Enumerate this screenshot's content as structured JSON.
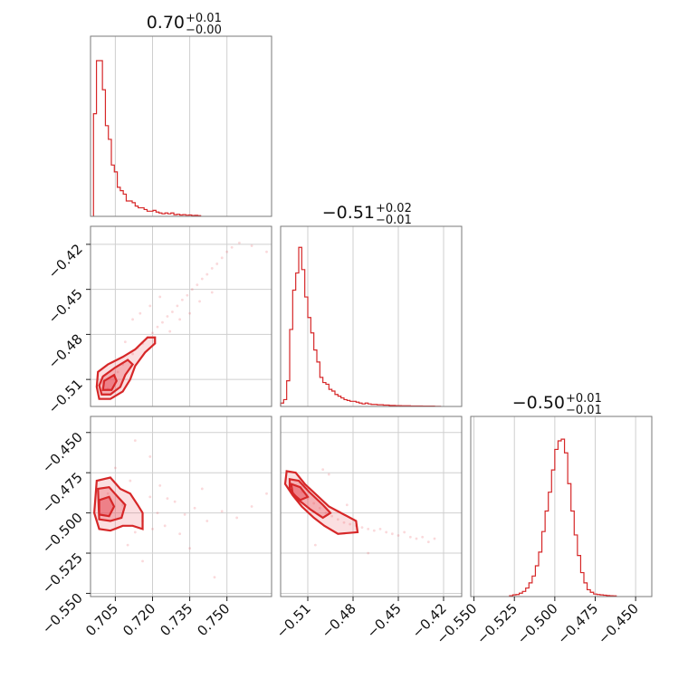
{
  "chart_data": [
    {
      "type": "histogram",
      "title": {
        "value": "0.70",
        "plus": "+0.01",
        "minus": "−0.00"
      },
      "param_index": 0,
      "xlim": [
        0.695,
        0.768
      ],
      "xticks": [
        0.705,
        0.72,
        0.735,
        0.75
      ],
      "xticklabels": [
        "0.705",
        "0.720",
        "0.735",
        "0.750"
      ],
      "bins": [
        0.6962,
        0.6974,
        0.6986,
        0.6998,
        0.701,
        0.7022,
        0.7034,
        0.7046,
        0.7058,
        0.707,
        0.7082,
        0.7094,
        0.7106,
        0.7118,
        0.713,
        0.7142,
        0.7154,
        0.7166,
        0.7178,
        0.719,
        0.7202,
        0.7214,
        0.7226,
        0.7238,
        0.725,
        0.7262,
        0.7274,
        0.7286,
        0.7298,
        0.731,
        0.7322,
        0.7334,
        0.7346,
        0.7358,
        0.737,
        0.7382,
        0.7394
      ],
      "counts": [
        0.6,
        0.91,
        0.91,
        0.74,
        0.53,
        0.45,
        0.3,
        0.26,
        0.17,
        0.15,
        0.13,
        0.09,
        0.09,
        0.08,
        0.06,
        0.05,
        0.05,
        0.04,
        0.03,
        0.03,
        0.035,
        0.025,
        0.02,
        0.015,
        0.02,
        0.015,
        0.02,
        0.01,
        0.012,
        0.008,
        0.01,
        0.007,
        0.008,
        0.005,
        0.006,
        0.004
      ]
    },
    {
      "type": "histogram",
      "title": {
        "value": "−0.51",
        "plus": "+0.02",
        "minus": "−0.01"
      },
      "param_index": 1,
      "xlim": [
        -0.528,
        -0.408
      ],
      "xticks": [
        -0.51,
        -0.48,
        -0.45,
        -0.42
      ],
      "xticklabels": [
        "−0.51",
        "−0.48",
        "−0.45",
        "−0.42"
      ],
      "bins": [
        -0.528,
        -0.526,
        -0.524,
        -0.522,
        -0.52,
        -0.518,
        -0.516,
        -0.514,
        -0.512,
        -0.51,
        -0.508,
        -0.506,
        -0.504,
        -0.502,
        -0.5,
        -0.498,
        -0.496,
        -0.494,
        -0.492,
        -0.49,
        -0.488,
        -0.486,
        -0.484,
        -0.482,
        -0.48,
        -0.478,
        -0.476,
        -0.474,
        -0.472,
        -0.47,
        -0.468,
        -0.466,
        -0.464,
        -0.462,
        -0.46,
        -0.458,
        -0.456,
        -0.454,
        -0.452,
        -0.45,
        -0.448,
        -0.446,
        -0.444,
        -0.442,
        -0.44,
        -0.438,
        -0.436,
        -0.434,
        -0.432,
        -0.43,
        -0.428,
        -0.426,
        -0.424,
        -0.422
      ],
      "counts": [
        0.02,
        0.04,
        0.15,
        0.45,
        0.68,
        0.78,
        0.93,
        0.8,
        0.64,
        0.52,
        0.43,
        0.33,
        0.26,
        0.17,
        0.14,
        0.13,
        0.1,
        0.09,
        0.07,
        0.06,
        0.05,
        0.04,
        0.035,
        0.03,
        0.03,
        0.025,
        0.02,
        0.015,
        0.02,
        0.015,
        0.012,
        0.012,
        0.01,
        0.01,
        0.008,
        0.008,
        0.006,
        0.006,
        0.005,
        0.005,
        0.004,
        0.004,
        0.004,
        0.003,
        0.003,
        0.003,
        0.003,
        0.002,
        0.002,
        0.002,
        0.002,
        0.001,
        0.001
      ]
    },
    {
      "type": "histogram",
      "title": {
        "value": "−0.50",
        "plus": "+0.01",
        "minus": "−0.01"
      },
      "param_index": 2,
      "xlim": [
        -0.552,
        -0.44
      ],
      "xticks": [
        -0.55,
        -0.525,
        -0.5,
        -0.475,
        -0.45
      ],
      "xticklabels": [
        "−0.550",
        "−0.525",
        "−0.500",
        "−0.475",
        "−0.450"
      ],
      "bins": [
        -0.528,
        -0.526,
        -0.524,
        -0.522,
        -0.52,
        -0.518,
        -0.516,
        -0.514,
        -0.512,
        -0.51,
        -0.508,
        -0.506,
        -0.504,
        -0.502,
        -0.5,
        -0.498,
        -0.496,
        -0.494,
        -0.492,
        -0.49,
        -0.488,
        -0.486,
        -0.484,
        -0.482,
        -0.48,
        -0.478,
        -0.476,
        -0.474,
        -0.472,
        -0.47,
        -0.468,
        -0.466,
        -0.464,
        -0.462
      ],
      "counts": [
        0.005,
        0.01,
        0.012,
        0.02,
        0.03,
        0.05,
        0.08,
        0.12,
        0.18,
        0.26,
        0.38,
        0.5,
        0.61,
        0.74,
        0.86,
        0.91,
        0.92,
        0.84,
        0.66,
        0.5,
        0.36,
        0.24,
        0.14,
        0.08,
        0.04,
        0.025,
        0.015,
        0.012,
        0.01,
        0.008,
        0.006,
        0.005,
        0.004
      ]
    },
    {
      "type": "scatter",
      "x_param": 0,
      "y_param": 1,
      "xlim": [
        0.695,
        0.768
      ],
      "ylim": [
        -0.528,
        -0.408
      ],
      "yticks": [
        -0.51,
        -0.48,
        -0.45,
        -0.42
      ],
      "yticklabels": [
        "−0.51",
        "−0.48",
        "−0.45",
        "−0.42"
      ],
      "points": [
        [
          0.7,
          -0.512
        ],
        [
          0.702,
          -0.516
        ],
        [
          0.704,
          -0.508
        ],
        [
          0.706,
          -0.505
        ],
        [
          0.708,
          -0.5
        ],
        [
          0.71,
          -0.497
        ],
        [
          0.712,
          -0.493
        ],
        [
          0.714,
          -0.489
        ],
        [
          0.716,
          -0.486
        ],
        [
          0.718,
          -0.482
        ],
        [
          0.72,
          -0.479
        ],
        [
          0.722,
          -0.475
        ],
        [
          0.724,
          -0.472
        ],
        [
          0.726,
          -0.468
        ],
        [
          0.728,
          -0.465
        ],
        [
          0.73,
          -0.461
        ],
        [
          0.732,
          -0.457
        ],
        [
          0.734,
          -0.454
        ],
        [
          0.736,
          -0.45
        ],
        [
          0.738,
          -0.447
        ],
        [
          0.74,
          -0.443
        ],
        [
          0.742,
          -0.44
        ],
        [
          0.744,
          -0.436
        ],
        [
          0.746,
          -0.433
        ],
        [
          0.748,
          -0.429
        ],
        [
          0.75,
          -0.425
        ],
        [
          0.752,
          -0.422
        ],
        [
          0.755,
          -0.419
        ],
        [
          0.76,
          -0.421
        ],
        [
          0.766,
          -0.425
        ],
        [
          0.727,
          -0.478
        ],
        [
          0.731,
          -0.47
        ],
        [
          0.735,
          -0.466
        ],
        [
          0.739,
          -0.458
        ],
        [
          0.744,
          -0.452
        ],
        [
          0.715,
          -0.466
        ],
        [
          0.719,
          -0.461
        ],
        [
          0.723,
          -0.455
        ],
        [
          0.712,
          -0.47
        ],
        [
          0.709,
          -0.485
        ]
      ],
      "contours": [
        [
          [
            0.6985,
            -0.523
          ],
          [
            0.703,
            -0.523
          ],
          [
            0.708,
            -0.518
          ],
          [
            0.711,
            -0.51
          ],
          [
            0.713,
            -0.501
          ],
          [
            0.717,
            -0.492
          ],
          [
            0.721,
            -0.486
          ],
          [
            0.721,
            -0.482
          ],
          [
            0.718,
            -0.482
          ],
          [
            0.713,
            -0.49
          ],
          [
            0.708,
            -0.495
          ],
          [
            0.702,
            -0.5
          ],
          [
            0.698,
            -0.505
          ],
          [
            0.6975,
            -0.515
          ]
        ],
        [
          [
            0.6995,
            -0.52
          ],
          [
            0.703,
            -0.52
          ],
          [
            0.707,
            -0.515
          ],
          [
            0.709,
            -0.507
          ],
          [
            0.712,
            -0.5
          ],
          [
            0.71,
            -0.497
          ],
          [
            0.705,
            -0.502
          ],
          [
            0.7,
            -0.508
          ],
          [
            0.6985,
            -0.514
          ]
        ],
        [
          [
            0.7,
            -0.517
          ],
          [
            0.7035,
            -0.517
          ],
          [
            0.7055,
            -0.511
          ],
          [
            0.7045,
            -0.507
          ],
          [
            0.7005,
            -0.511
          ]
        ]
      ]
    },
    {
      "type": "scatter",
      "x_param": 0,
      "y_param": 2,
      "xlim": [
        0.695,
        0.768
      ],
      "ylim": [
        -0.552,
        -0.44
      ],
      "yticks": [
        -0.55,
        -0.525,
        -0.5,
        -0.475,
        -0.45
      ],
      "yticklabels": [
        "−0.550",
        "−0.525",
        "−0.500",
        "−0.475",
        "−0.450"
      ],
      "points": [
        [
          0.702,
          -0.488
        ],
        [
          0.705,
          -0.51
        ],
        [
          0.708,
          -0.495
        ],
        [
          0.711,
          -0.48
        ],
        [
          0.713,
          -0.512
        ],
        [
          0.716,
          -0.505
        ],
        [
          0.719,
          -0.49
        ],
        [
          0.722,
          -0.5
        ],
        [
          0.725,
          -0.508
        ],
        [
          0.729,
          -0.493
        ],
        [
          0.733,
          -0.501
        ],
        [
          0.737,
          -0.497
        ],
        [
          0.742,
          -0.505
        ],
        [
          0.748,
          -0.499
        ],
        [
          0.754,
          -0.503
        ],
        [
          0.76,
          -0.496
        ],
        [
          0.766,
          -0.488
        ],
        [
          0.716,
          -0.53
        ],
        [
          0.719,
          -0.465
        ],
        [
          0.713,
          -0.455
        ],
        [
          0.723,
          -0.483
        ],
        [
          0.731,
          -0.513
        ],
        [
          0.74,
          -0.485
        ],
        [
          0.705,
          -0.472
        ],
        [
          0.71,
          -0.52
        ],
        [
          0.726,
          -0.491
        ],
        [
          0.735,
          -0.522
        ],
        [
          0.745,
          -0.54
        ],
        [
          0.72,
          -0.51
        ]
      ],
      "contours": [
        [
          [
            0.6975,
            -0.48
          ],
          [
            0.703,
            -0.478
          ],
          [
            0.707,
            -0.485
          ],
          [
            0.711,
            -0.488
          ],
          [
            0.714,
            -0.495
          ],
          [
            0.716,
            -0.5
          ],
          [
            0.716,
            -0.51
          ],
          [
            0.712,
            -0.508
          ],
          [
            0.708,
            -0.508
          ],
          [
            0.703,
            -0.511
          ],
          [
            0.6985,
            -0.51
          ],
          [
            0.6965,
            -0.5
          ]
        ],
        [
          [
            0.698,
            -0.485
          ],
          [
            0.7025,
            -0.484
          ],
          [
            0.706,
            -0.49
          ],
          [
            0.709,
            -0.495
          ],
          [
            0.7075,
            -0.503
          ],
          [
            0.703,
            -0.505
          ],
          [
            0.6985,
            -0.504
          ]
        ],
        [
          [
            0.6985,
            -0.492
          ],
          [
            0.7025,
            -0.49
          ],
          [
            0.7045,
            -0.496
          ],
          [
            0.7025,
            -0.502
          ],
          [
            0.6985,
            -0.501
          ]
        ]
      ]
    },
    {
      "type": "scatter",
      "x_param": 1,
      "y_param": 2,
      "xlim": [
        -0.528,
        -0.408
      ],
      "ylim": [
        -0.552,
        -0.44
      ],
      "points": [
        [
          -0.522,
          -0.479
        ],
        [
          -0.518,
          -0.483
        ],
        [
          -0.514,
          -0.487
        ],
        [
          -0.51,
          -0.491
        ],
        [
          -0.506,
          -0.494
        ],
        [
          -0.502,
          -0.497
        ],
        [
          -0.498,
          -0.5
        ],
        [
          -0.494,
          -0.502
        ],
        [
          -0.49,
          -0.504
        ],
        [
          -0.486,
          -0.506
        ],
        [
          -0.482,
          -0.507
        ],
        [
          -0.478,
          -0.508
        ],
        [
          -0.474,
          -0.509
        ],
        [
          -0.47,
          -0.51
        ],
        [
          -0.466,
          -0.511
        ],
        [
          -0.462,
          -0.51
        ],
        [
          -0.458,
          -0.512
        ],
        [
          -0.454,
          -0.513
        ],
        [
          -0.45,
          -0.514
        ],
        [
          -0.446,
          -0.512
        ],
        [
          -0.442,
          -0.515
        ],
        [
          -0.438,
          -0.516
        ],
        [
          -0.434,
          -0.515
        ],
        [
          -0.43,
          -0.518
        ],
        [
          -0.426,
          -0.516
        ],
        [
          -0.5,
          -0.473
        ],
        [
          -0.496,
          -0.476
        ],
        [
          -0.505,
          -0.52
        ],
        [
          -0.47,
          -0.525
        ],
        [
          -0.484,
          -0.495
        ]
      ],
      "contours": [
        [
          [
            -0.524,
            -0.474
          ],
          [
            -0.518,
            -0.475
          ],
          [
            -0.512,
            -0.482
          ],
          [
            -0.504,
            -0.489
          ],
          [
            -0.496,
            -0.496
          ],
          [
            -0.488,
            -0.5
          ],
          [
            -0.478,
            -0.505
          ],
          [
            -0.477,
            -0.512
          ],
          [
            -0.49,
            -0.513
          ],
          [
            -0.499,
            -0.508
          ],
          [
            -0.506,
            -0.503
          ],
          [
            -0.514,
            -0.496
          ],
          [
            -0.52,
            -0.489
          ],
          [
            -0.525,
            -0.482
          ]
        ],
        [
          [
            -0.522,
            -0.479
          ],
          [
            -0.516,
            -0.48
          ],
          [
            -0.509,
            -0.487
          ],
          [
            -0.5,
            -0.495
          ],
          [
            -0.495,
            -0.5
          ],
          [
            -0.5,
            -0.503
          ],
          [
            -0.508,
            -0.498
          ],
          [
            -0.516,
            -0.492
          ],
          [
            -0.522,
            -0.485
          ]
        ],
        [
          [
            -0.521,
            -0.482
          ],
          [
            -0.515,
            -0.484
          ],
          [
            -0.51,
            -0.49
          ],
          [
            -0.515,
            -0.492
          ],
          [
            -0.52,
            -0.488
          ]
        ]
      ]
    }
  ]
}
